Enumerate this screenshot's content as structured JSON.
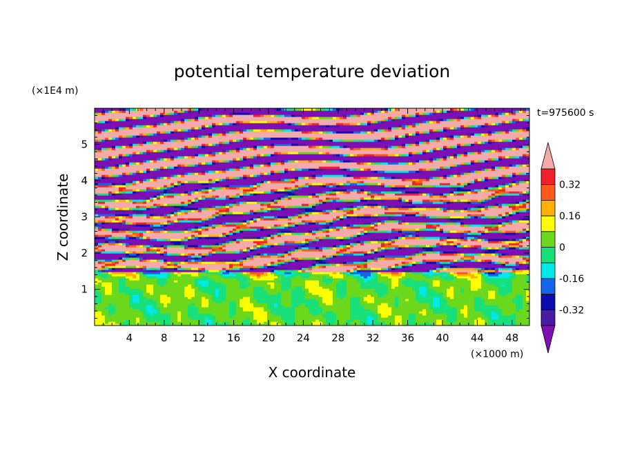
{
  "chart_data": {
    "type": "heatmap",
    "title": "potential temperature deviation",
    "xlabel": "X coordinate",
    "ylabel": "Z coordinate",
    "x_unit": "(×1000 m)",
    "y_unit": "(×1E4 m)",
    "time_label": "t=975600 s",
    "xlim": [
      0,
      50
    ],
    "ylim": [
      0,
      6
    ],
    "x_ticks": [
      "4",
      "8",
      "12",
      "16",
      "20",
      "24",
      "28",
      "32",
      "36",
      "40",
      "44",
      "48"
    ],
    "y_ticks": [
      "1",
      "2",
      "3",
      "4",
      "5"
    ],
    "colorbar": {
      "levels": [
        -0.4,
        -0.32,
        -0.24,
        -0.16,
        -0.08,
        0,
        0.08,
        0.16,
        0.24,
        0.32,
        0.4
      ],
      "colors": [
        "#7d0fb4",
        "#4a1aa0",
        "#0c0cb0",
        "#1366e8",
        "#00e8e8",
        "#18e07a",
        "#6cd81c",
        "#ffff00",
        "#ffb000",
        "#ff5a1e",
        "#f2202a",
        "#f4aaaa"
      ],
      "labels": [
        "0.32",
        "0.16",
        "0",
        "-0.16",
        "-0.32"
      ],
      "extend": "both"
    },
    "field_description": {
      "z_0_to_1.5": "weak deviations near 0 (green/teal) with scattered yellow and red patches",
      "z_1.5_to_4": "banded, strongly alternating positive (pink/red) and negative (purple/blue) layers with thin cyan/yellow transitions",
      "z_4_to_6": "broad horizontal alternating bands of pink (> 0.40) and purple (< -0.40)"
    }
  }
}
